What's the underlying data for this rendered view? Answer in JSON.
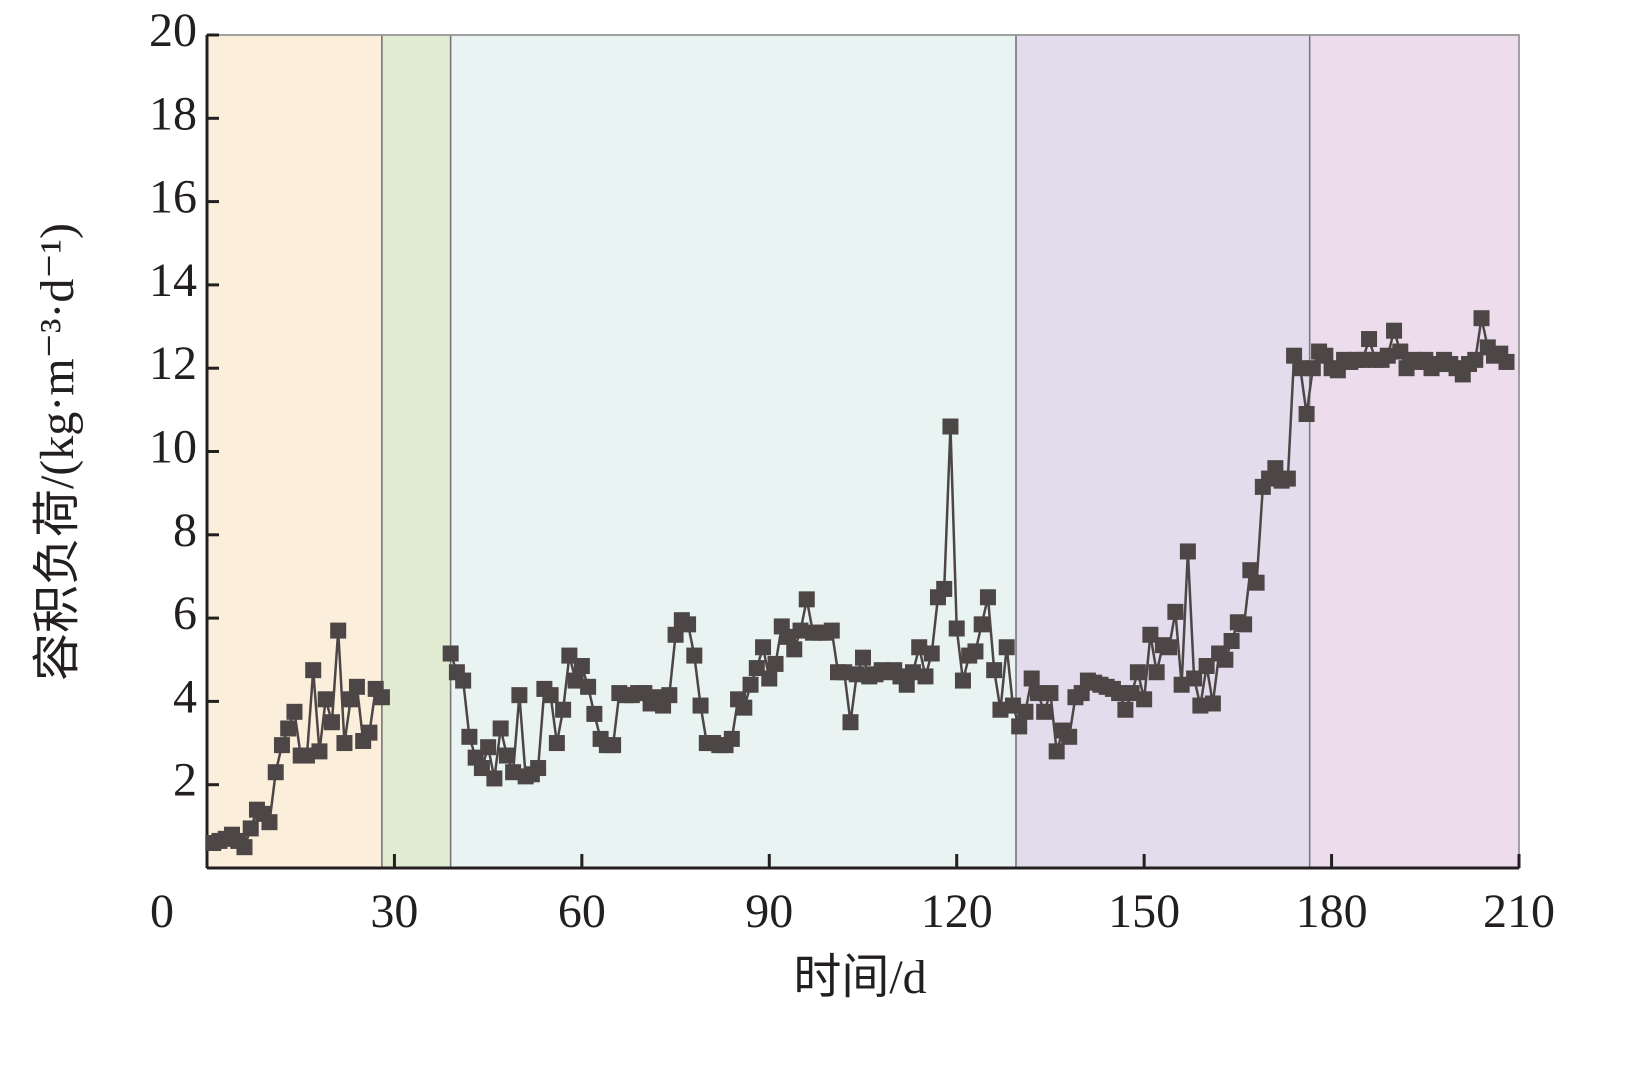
{
  "chart_data": {
    "type": "line",
    "xlabel": "时间/d",
    "ylabel": "容积负荷/(kg·m⁻³·d⁻¹)",
    "xlim": [
      0,
      210
    ],
    "xticks": [
      0,
      30,
      60,
      90,
      120,
      150,
      180,
      210
    ],
    "ylim": [
      0,
      20
    ],
    "yticks": [
      2,
      4,
      6,
      8,
      10,
      12,
      14,
      16,
      18,
      20
    ],
    "grid": false,
    "regions": [
      {
        "start": 0,
        "end": 28,
        "color": "#fbeedb"
      },
      {
        "start": 28,
        "end": 39,
        "color": "#e1ebd1"
      },
      {
        "start": 39,
        "end": 129.5,
        "color": "#e9f3f1"
      },
      {
        "start": 129.5,
        "end": 176.5,
        "color": "#e2dcec"
      },
      {
        "start": 176.5,
        "end": 210,
        "color": "#ecdcec"
      }
    ],
    "x": [
      1,
      2,
      3,
      4,
      5,
      6,
      7,
      8,
      9,
      10,
      11,
      12,
      13,
      14,
      15,
      16,
      17,
      18,
      19,
      20,
      21,
      22,
      23,
      24,
      25,
      26,
      27,
      28,
      29,
      30,
      31,
      32,
      33,
      34,
      35,
      36,
      37,
      38,
      39,
      40,
      41,
      42,
      43,
      44,
      45,
      46,
      47,
      48,
      49,
      50,
      51,
      52,
      53,
      54,
      55,
      56,
      57,
      58,
      59,
      60,
      61,
      62,
      63,
      64,
      65,
      66,
      67,
      68,
      69,
      70,
      71,
      72,
      73,
      74,
      75,
      76,
      77,
      78,
      79,
      80,
      81,
      82,
      83,
      84,
      85,
      86,
      87,
      88,
      89,
      90,
      91,
      92,
      93,
      94,
      95,
      96,
      97,
      98,
      99,
      100,
      101,
      102,
      103,
      104,
      105,
      106,
      107,
      108,
      109,
      110,
      111,
      112,
      113,
      114,
      115,
      116,
      117,
      118,
      119,
      120,
      121,
      122,
      123,
      124,
      125,
      126,
      127,
      128,
      129,
      130,
      131,
      132,
      133,
      134,
      135,
      136,
      137,
      138,
      139,
      140,
      141,
      142,
      143,
      144,
      145,
      146,
      147,
      148,
      149,
      150,
      151,
      152,
      153,
      154,
      155,
      156,
      157,
      158,
      159,
      160,
      161,
      162,
      163,
      164,
      165,
      166,
      167,
      168,
      169,
      170,
      171,
      172,
      173,
      174,
      175,
      176,
      177,
      178,
      179,
      180,
      181,
      182,
      183,
      184,
      185,
      186,
      187,
      188,
      189,
      190,
      191,
      192,
      193,
      194,
      195,
      196,
      197,
      198,
      199,
      200,
      201,
      202,
      203,
      204,
      205,
      206,
      207,
      208
    ],
    "series": [
      {
        "name": null,
        "color": "#4d4646",
        "values": [
          0.6,
          0.65,
          0.7,
          0.8,
          0.65,
          0.5,
          0.95,
          1.4,
          1.3,
          1.1,
          2.3,
          2.95,
          3.35,
          3.75,
          2.7,
          2.7,
          4.75,
          2.8,
          4.05,
          3.5,
          5.7,
          3.0,
          4.05,
          4.35,
          3.05,
          3.25,
          4.3,
          4.1,
          null,
          null,
          null,
          null,
          null,
          null,
          null,
          null,
          null,
          null,
          5.15,
          4.7,
          4.5,
          3.15,
          2.65,
          2.4,
          2.9,
          2.15,
          3.35,
          2.7,
          2.3,
          4.15,
          2.2,
          2.25,
          2.4,
          4.3,
          4.15,
          3.0,
          3.8,
          5.1,
          4.5,
          4.85,
          4.35,
          3.7,
          3.1,
          2.95,
          2.95,
          4.2,
          4.15,
          4.15,
          4.2,
          4.2,
          3.95,
          4.1,
          3.9,
          4.15,
          5.6,
          5.95,
          5.85,
          5.1,
          3.9,
          3.0,
          3.0,
          2.95,
          2.95,
          3.1,
          4.05,
          3.85,
          4.4,
          4.8,
          5.3,
          4.55,
          4.9,
          5.8,
          5.55,
          5.25,
          5.7,
          6.45,
          5.65,
          5.65,
          5.65,
          5.7,
          4.7,
          4.7,
          3.5,
          4.65,
          5.05,
          4.6,
          4.65,
          4.75,
          4.7,
          4.75,
          4.6,
          4.4,
          4.7,
          5.3,
          4.6,
          5.15,
          6.5,
          6.7,
          10.6,
          5.75,
          4.5,
          5.1,
          5.2,
          5.85,
          6.5,
          4.75,
          3.8,
          5.3,
          3.9,
          3.4,
          3.75,
          4.55,
          4.2,
          3.75,
          4.2,
          2.8,
          3.3,
          3.15,
          4.1,
          4.2,
          4.5,
          4.45,
          4.4,
          4.35,
          4.3,
          4.2,
          3.8,
          4.2,
          4.7,
          4.05,
          5.6,
          4.7,
          5.35,
          5.3,
          6.15,
          4.4,
          7.6,
          4.55,
          3.9,
          4.85,
          3.95,
          5.15,
          5.0,
          5.45,
          5.9,
          5.85,
          7.15,
          6.85,
          9.15,
          9.35,
          9.6,
          9.3,
          9.35,
          12.3,
          12.0,
          10.9,
          12.0,
          12.4,
          12.3,
          12.0,
          11.95,
          12.2,
          12.15,
          12.2,
          12.2,
          12.7,
          12.2,
          12.2,
          12.3,
          12.9,
          12.4,
          12.0,
          12.2,
          12.15,
          12.2,
          12.0,
          12.1,
          12.2,
          12.1,
          12.0,
          11.85,
          12.1,
          12.2,
          13.2,
          12.5,
          12.3,
          12.35,
          12.15
        ]
      }
    ]
  }
}
